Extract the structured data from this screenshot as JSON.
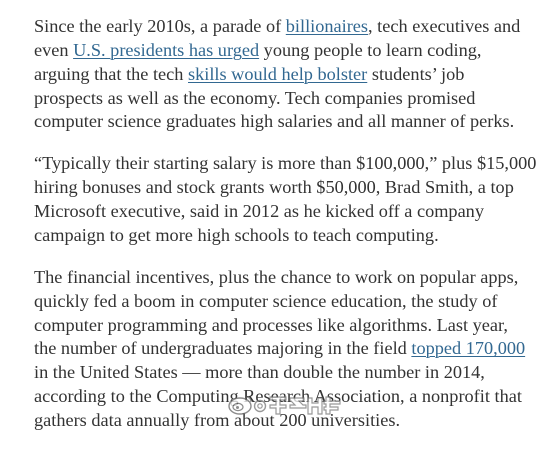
{
  "article": {
    "paragraphs": [
      [
        [
          "Since the early 2010s, a parade of ",
          "billionaires",
          ", tech executives and"
        ],
        [
          "even ",
          "U.S. presidents has urged",
          " young people to learn coding,"
        ],
        [
          "arguing that the tech ",
          "skills would help bolster",
          " students’ job"
        ],
        [
          "prospects as well as the economy. Tech companies promised"
        ],
        [
          "computer science graduates high salaries and all manner of perks."
        ]
      ],
      [
        [
          "“Typically their starting salary is more than $100,000,” plus $15,000"
        ],
        [
          "hiring bonuses and stock grants worth $50,000, Brad Smith, a top"
        ],
        [
          "Microsoft executive, said in 2012 as he kicked off a company"
        ],
        [
          "campaign to get more high schools to teach computing."
        ]
      ],
      [
        [
          "The financial incentives, plus the chance to work on popular apps,"
        ],
        [
          "quickly fed a boom in computer science education, the study of"
        ],
        [
          "computer programming and processes like algorithms. Last year,"
        ],
        [
          "the number of undergraduates majoring in the field ",
          "topped 170,000"
        ],
        [
          "in the United States — more than double the number in 2014,"
        ],
        [
          "according to the Computing Research Association, a nonprofit that"
        ],
        [
          "gathers data annually from about 200 universities."
        ]
      ]
    ]
  },
  "colors": {
    "text": "#333333",
    "link": "#326891",
    "background": "#ffffff"
  },
  "watermark": {
    "text": "@新浪科技",
    "icon": "weibo-logo-icon"
  }
}
